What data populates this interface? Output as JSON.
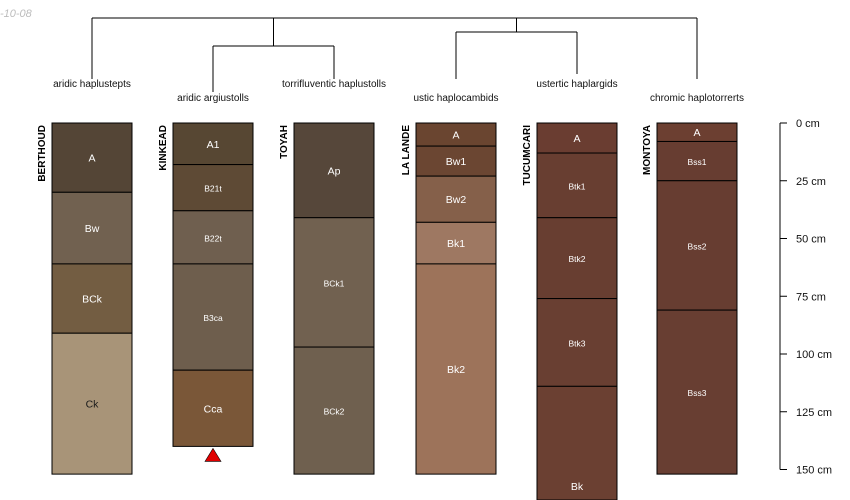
{
  "date_stamp": "-10-08",
  "depth_axis": {
    "unit": "cm",
    "max_depth": 150,
    "ticks": [
      {
        "value": 0,
        "label": "0 cm"
      },
      {
        "value": 25,
        "label": "25 cm"
      },
      {
        "value": 50,
        "label": "50 cm"
      },
      {
        "value": 75,
        "label": "75 cm"
      },
      {
        "value": 100,
        "label": "100 cm"
      },
      {
        "value": 125,
        "label": "125 cm"
      },
      {
        "value": 150,
        "label": "150 cm"
      }
    ]
  },
  "profiles": [
    {
      "name": "BERTHOUD",
      "taxon": "aridic haplustepts",
      "horizons": [
        {
          "name": "A",
          "top": 0,
          "bottom": 30,
          "color": "#544536",
          "text_color": "#ffffff",
          "size": "normal"
        },
        {
          "name": "Bw",
          "top": 30,
          "bottom": 61,
          "color": "#716150",
          "text_color": "#ffffff",
          "size": "normal"
        },
        {
          "name": "BCk",
          "top": 61,
          "bottom": 91,
          "color": "#735d42",
          "text_color": "#ffffff",
          "size": "normal"
        },
        {
          "name": "Ck",
          "top": 91,
          "bottom": 152,
          "color": "#a89478",
          "text_color": "#1a1a1a",
          "size": "normal"
        }
      ]
    },
    {
      "name": "KINKEAD",
      "taxon": "aridic argiustolls",
      "bedrock_marker": true,
      "horizons": [
        {
          "name": "A1",
          "top": 0,
          "bottom": 18,
          "color": "#574733",
          "text_color": "#ffffff",
          "size": "normal"
        },
        {
          "name": "B21t",
          "top": 18,
          "bottom": 38,
          "color": "#5e4a35",
          "text_color": "#ffffff",
          "size": "small"
        },
        {
          "name": "B22t",
          "top": 38,
          "bottom": 61,
          "color": "#6f5f4f",
          "text_color": "#ffffff",
          "size": "small"
        },
        {
          "name": "B3ca",
          "top": 61,
          "bottom": 107,
          "color": "#6e5e4d",
          "text_color": "#ffffff",
          "size": "small"
        },
        {
          "name": "Cca",
          "top": 107,
          "bottom": 140,
          "color": "#7a5738",
          "text_color": "#ffffff",
          "size": "normal"
        }
      ]
    },
    {
      "name": "TOYAH",
      "taxon": "torrifluventic haplustolls",
      "horizons": [
        {
          "name": "Ap",
          "top": 0,
          "bottom": 41,
          "color": "#56473a",
          "text_color": "#ffffff",
          "size": "normal"
        },
        {
          "name": "BCk1",
          "top": 41,
          "bottom": 97,
          "color": "#716150",
          "text_color": "#ffffff",
          "size": "small"
        },
        {
          "name": "BCk2",
          "top": 97,
          "bottom": 152,
          "color": "#6f604f",
          "text_color": "#ffffff",
          "size": "small"
        }
      ]
    },
    {
      "name": "LA LANDE",
      "taxon": "ustic haplocambids",
      "horizons": [
        {
          "name": "A",
          "top": 0,
          "bottom": 10,
          "color": "#6a4530",
          "text_color": "#ffffff",
          "size": "normal"
        },
        {
          "name": "Bw1",
          "top": 10,
          "bottom": 23,
          "color": "#6b4632",
          "text_color": "#ffffff",
          "size": "normal"
        },
        {
          "name": "Bw2",
          "top": 23,
          "bottom": 43,
          "color": "#85604a",
          "text_color": "#ffffff",
          "size": "normal"
        },
        {
          "name": "Bk1",
          "top": 43,
          "bottom": 61,
          "color": "#9e7862",
          "text_color": "#ffffff",
          "size": "normal"
        },
        {
          "name": "Bk2",
          "top": 61,
          "bottom": 152,
          "color": "#9d735a",
          "text_color": "#ffffff",
          "size": "normal"
        }
      ]
    },
    {
      "name": "TUCUMCARI",
      "taxon": "ustertic haplargids",
      "horizons": [
        {
          "name": "A",
          "top": 0,
          "bottom": 13,
          "color": "#6a3d31",
          "text_color": "#ffffff",
          "size": "normal"
        },
        {
          "name": "Btk1",
          "top": 13,
          "bottom": 41,
          "color": "#683e31",
          "text_color": "#ffffff",
          "size": "small"
        },
        {
          "name": "Btk2",
          "top": 41,
          "bottom": 76,
          "color": "#683e31",
          "text_color": "#ffffff",
          "size": "small"
        },
        {
          "name": "Btk3",
          "top": 76,
          "bottom": 114,
          "color": "#693f32",
          "text_color": "#ffffff",
          "size": "small"
        },
        {
          "name": "Bk",
          "top": 114,
          "bottom": 165,
          "color": "#6b4032",
          "text_color": "#ffffff",
          "size": "normal"
        }
      ]
    },
    {
      "name": "MONTOYA",
      "taxon": "chromic haplotorrerts",
      "horizons": [
        {
          "name": "A",
          "top": 0,
          "bottom": 8,
          "color": "#6c3f31",
          "text_color": "#ffffff",
          "size": "normal"
        },
        {
          "name": "Bss1",
          "top": 8,
          "bottom": 25,
          "color": "#673d31",
          "text_color": "#ffffff",
          "size": "small"
        },
        {
          "name": "Bss2",
          "top": 25,
          "bottom": 81,
          "color": "#673d31",
          "text_color": "#ffffff",
          "size": "small"
        },
        {
          "name": "Bss3",
          "top": 81,
          "bottom": 152,
          "color": "#683e32",
          "text_color": "#ffffff",
          "size": "small"
        }
      ]
    }
  ],
  "colors": {
    "outline": "#000000",
    "bedrock_marker": "#e00000",
    "tree_line": "#000000"
  }
}
